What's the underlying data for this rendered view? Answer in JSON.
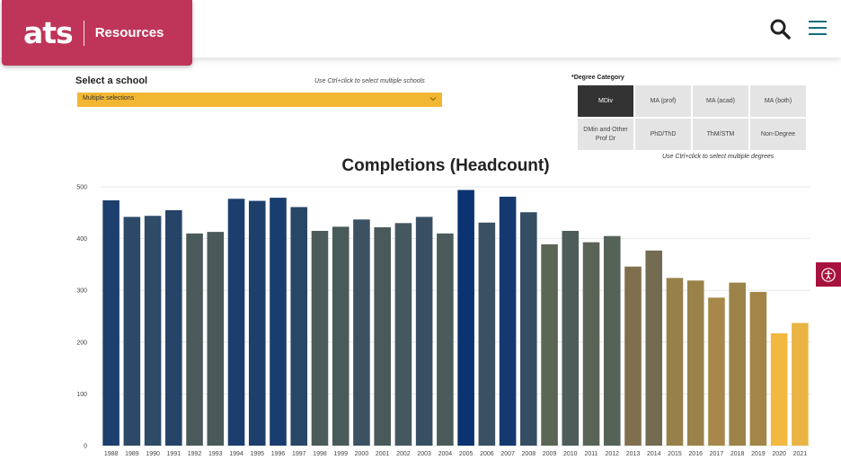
{
  "header": {
    "logo_text": "ats",
    "section_label": "Resources",
    "brand_color": "#be3559",
    "icons": [
      "search-icon",
      "hamburger-menu-icon",
      "accessibility-icon"
    ]
  },
  "filters": {
    "school_label": "Select a school",
    "school_hint": "Use Ctrl+click to select multiple schools",
    "school_value": "Multiple selections",
    "degree_label": "*Degree Category",
    "degree_hint": "Use Ctrl+click to select multiple degrees",
    "degree_options": [
      {
        "label": "MDiv",
        "selected": true
      },
      {
        "label": "MA (prof)",
        "selected": false
      },
      {
        "label": "MA (acad)",
        "selected": false
      },
      {
        "label": "MA (both)",
        "selected": false
      },
      {
        "label": "DMin and Other Prof Dr",
        "selected": false
      },
      {
        "label": "PhD/ThD",
        "selected": false
      },
      {
        "label": "ThM/STM",
        "selected": false
      },
      {
        "label": "Non-Degree",
        "selected": false
      }
    ]
  },
  "chart_data": {
    "type": "bar",
    "title": "Completions (Headcount)",
    "xlabel": "",
    "ylabel": "",
    "ylim": [
      0,
      500
    ],
    "yticks": [
      0,
      100,
      200,
      300,
      400,
      500
    ],
    "grid": true,
    "categories": [
      "1988",
      "1989",
      "1990",
      "1991",
      "1992",
      "1993",
      "1994",
      "1995",
      "1996",
      "1997",
      "1998",
      "1999",
      "2000",
      "2001",
      "2002",
      "2003",
      "2004",
      "2005",
      "2006",
      "2007",
      "2008",
      "2009",
      "2010",
      "2011",
      "2012",
      "2013",
      "2014",
      "2015",
      "2016",
      "2017",
      "2018",
      "2019",
      "2020",
      "2021"
    ],
    "values": [
      474,
      442,
      444,
      455,
      410,
      413,
      477,
      473,
      479,
      461,
      415,
      423,
      437,
      422,
      430,
      442,
      410,
      494,
      431,
      481,
      451,
      389,
      415,
      393,
      405,
      346,
      377,
      324,
      319,
      286,
      315,
      297,
      217,
      237
    ],
    "colors": [
      "#1d3f6e",
      "#2c4a68",
      "#2e4b67",
      "#254468",
      "#4a5a5a",
      "#4a5a5a",
      "#1c3e6e",
      "#1e3f6c",
      "#1a3d6f",
      "#284766",
      "#4b5c5b",
      "#495a5b",
      "#3c5263",
      "#4a5a5a",
      "#455860",
      "#384f63",
      "#4b5b5b",
      "#0b3271",
      "#3a5163",
      "#15396f",
      "#364e63",
      "#5c6655",
      "#4e5d5a",
      "#5a6456",
      "#556258",
      "#806f4d",
      "#736b52",
      "#978049",
      "#998149",
      "#a8884a",
      "#9b834a",
      "#a48548",
      "#f2b83f",
      "#e9b443"
    ]
  }
}
